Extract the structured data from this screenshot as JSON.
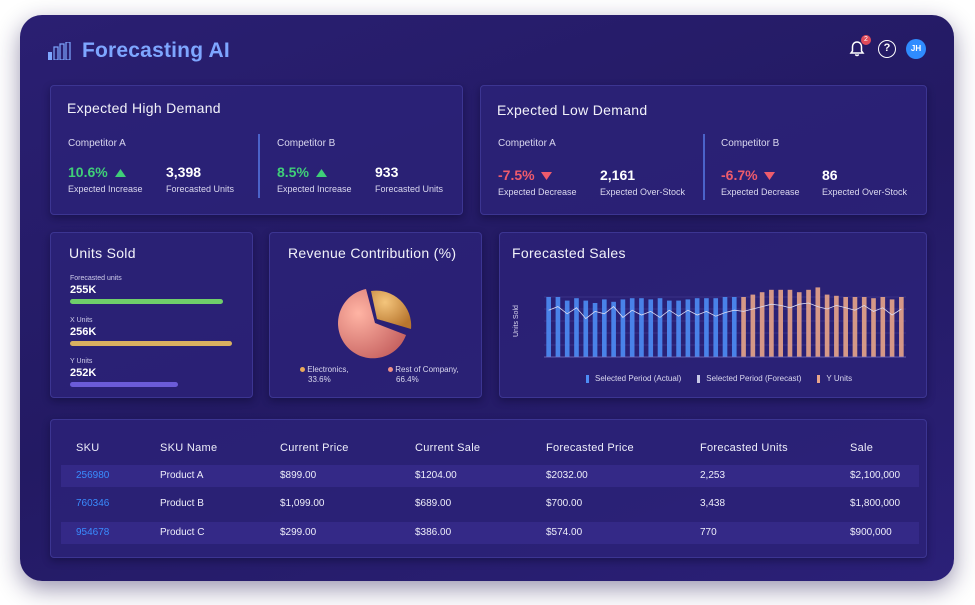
{
  "header": {
    "app_title": "Forecasting AI",
    "notification_count": "2",
    "help_symbol": "?",
    "avatar_initials": "JH"
  },
  "high_demand": {
    "title": "Expected High Demand",
    "competitors": [
      {
        "name": "Competitor A",
        "pct": "10.6%",
        "pct_label": "Expected Increase",
        "units": "3,398",
        "units_label": "Forecasted Units"
      },
      {
        "name": "Competitor B",
        "pct": "8.5%",
        "pct_label": "Expected Increase",
        "units": "933",
        "units_label": "Forecasted Units"
      }
    ]
  },
  "low_demand": {
    "title": "Expected Low Demand",
    "competitors": [
      {
        "name": "Competitor A",
        "pct": "-7.5%",
        "pct_label": "Expected Decrease",
        "units": "2,161",
        "units_label": "Expected Over-Stock"
      },
      {
        "name": "Competitor B",
        "pct": "-6.7%",
        "pct_label": "Expected Decrease",
        "units": "86",
        "units_label": "Expected Over-Stock"
      }
    ]
  },
  "units_sold": {
    "title": "Units Sold",
    "items": [
      {
        "label": "Forecasted units",
        "value": "255K",
        "fill": 0.85,
        "color": "#6fcf6a"
      },
      {
        "label": "X Units",
        "value": "256K",
        "fill": 0.9,
        "color": "#d9b060"
      },
      {
        "label": "Y Units",
        "value": "252K",
        "fill": 0.6,
        "color": "#6b5bd8"
      }
    ]
  },
  "revenue": {
    "title": "Revenue Contribution (%)",
    "legend": [
      {
        "label": "Electronics,",
        "value": "33.6%",
        "color": "#e9a95a"
      },
      {
        "label": "Rest of Company,",
        "value": "66.4%",
        "color": "#ee8f86"
      }
    ]
  },
  "forecasted_sales": {
    "title": "Forecasted Sales",
    "legend": [
      {
        "label": "Selected Period (Actual)",
        "color": "#4d8df5"
      },
      {
        "label": "Selected Period (Forecast)",
        "color": "#c8c8e6"
      },
      {
        "label": "Y Units",
        "color": "#e8a58a"
      }
    ]
  },
  "chart_data": {
    "type": "bar",
    "title": "Forecasted Sales",
    "ylabel": "Units Sold",
    "xlabel": "",
    "series": [
      {
        "name": "Selected Period (Actual)",
        "values": [
          5.0,
          5.0,
          4.7,
          4.9,
          4.7,
          4.5,
          4.8,
          4.6,
          4.8,
          4.9,
          4.9,
          4.8,
          4.9,
          4.7,
          4.7,
          4.8,
          4.9,
          4.9,
          4.9,
          5.0,
          5.0,
          0,
          0,
          0,
          0,
          0,
          0,
          0,
          0,
          0,
          0,
          0,
          0,
          0,
          0,
          0,
          0,
          0,
          0
        ]
      },
      {
        "name": "Y Units",
        "values": [
          0,
          0,
          0,
          0,
          0,
          0,
          0,
          0,
          0,
          0,
          0,
          0,
          0,
          0,
          0,
          0,
          0,
          0,
          0,
          0,
          0,
          5.0,
          5.2,
          5.4,
          5.6,
          5.6,
          5.6,
          5.4,
          5.6,
          5.8,
          5.2,
          5.1,
          5.0,
          5.0,
          5.0,
          4.9,
          5.0,
          4.8,
          5.0
        ]
      },
      {
        "name": "Trend",
        "values": [
          3.9,
          4.2,
          3.6,
          4.1,
          3.2,
          3.8,
          3.6,
          4.2,
          3.3,
          3.9,
          3.5,
          3.8,
          3.3,
          3.9,
          3.4,
          3.9,
          3.5,
          3.8,
          3.4,
          3.7,
          3.9,
          3.8,
          4.0,
          4.2,
          4.4,
          4.3,
          4.1,
          4.4,
          4.5,
          4.2,
          4.0,
          4.3,
          4.1,
          3.9,
          4.3,
          3.8,
          4.1,
          3.5,
          4.0
        ]
      }
    ],
    "ylim": [
      0,
      6
    ],
    "grid": true,
    "legend": "bottom"
  },
  "table": {
    "headers": [
      "SKU",
      "SKU Name",
      "Current Price",
      "Current Sale",
      "Forecasted Price",
      "Forecasted Units",
      "Sale"
    ],
    "rows": [
      [
        "256980",
        "Product A",
        "$899.00",
        "$1204.00",
        "$2032.00",
        "2,253",
        "$2,100,000"
      ],
      [
        "760346",
        "Product B",
        "$1,099.00",
        "$689.00",
        "$700.00",
        "3,438",
        "$1,800,000"
      ],
      [
        "954678",
        "Product C",
        "$299.00",
        "$386.00",
        "$574.00",
        "770",
        "$900,000"
      ]
    ]
  }
}
